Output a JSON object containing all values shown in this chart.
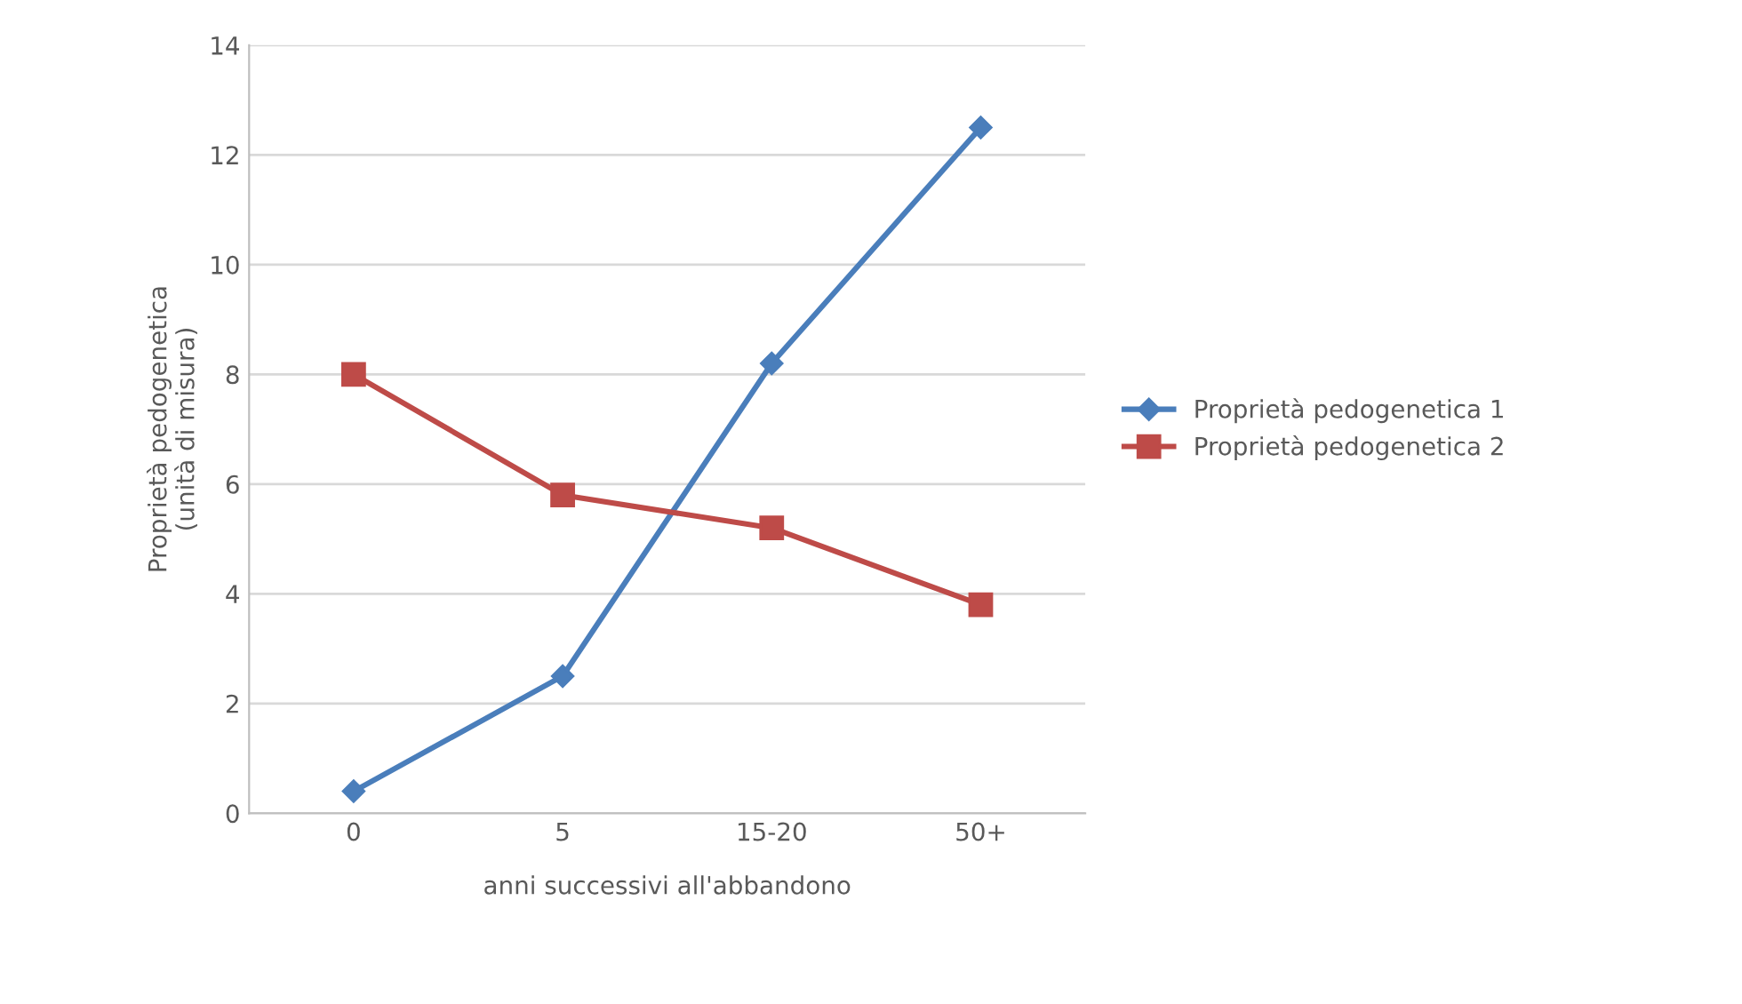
{
  "chart_data": {
    "type": "line",
    "xlabel": "anni successivi all'abbandono",
    "ylabel": "Proprietà pedogenetica\n(unità di misura)",
    "categories": [
      "0",
      "5",
      "15-20",
      "50+"
    ],
    "series": [
      {
        "name": "Proprietà pedogenetica 1",
        "color": "#4a7ebb",
        "marker": "diamond",
        "values": [
          0.4,
          2.5,
          8.2,
          12.5
        ]
      },
      {
        "name": "Proprietà pedogenetica 2",
        "color": "#be4b48",
        "marker": "square",
        "values": [
          8.0,
          5.8,
          5.2,
          3.8
        ]
      }
    ],
    "ylim": [
      0,
      14
    ],
    "yticks": [
      0,
      2,
      4,
      6,
      8,
      10,
      12,
      14
    ],
    "grid": "y",
    "legend": "right",
    "line_style": "solid"
  }
}
